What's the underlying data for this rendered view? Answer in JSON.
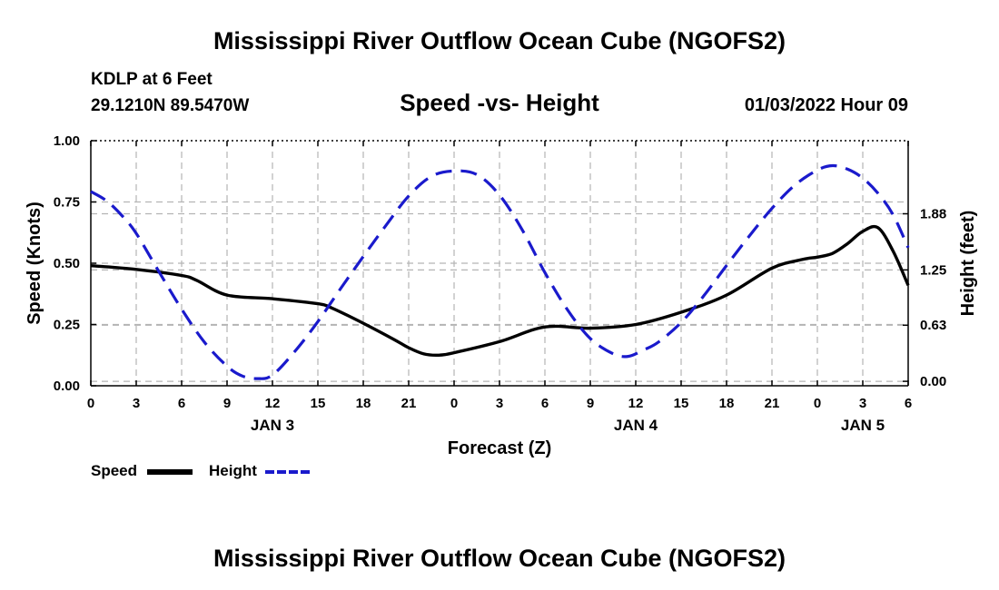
{
  "header": {
    "title": "Mississippi River Outflow Ocean Cube (NGOFS2)",
    "station": "KDLP at 6 Feet",
    "coords": "29.1210N  89.5470W",
    "datetime": "01/03/2022 Hour 09"
  },
  "footer": {
    "title": "Mississippi River Outflow Ocean Cube (NGOFS2)"
  },
  "legend": {
    "speed_label": "Speed",
    "height_label": "Height"
  },
  "colors": {
    "speed": "#000000",
    "height": "#1a1acc",
    "grid": "#b4b4b4"
  },
  "chart_data": {
    "type": "line",
    "title": "Speed -vs- Height",
    "xlabel": "Forecast (Z)",
    "ylabel": "Speed (Knots)",
    "y2label": "Height (feet)",
    "x_unit": "forecast hour",
    "xlim": [
      0,
      54
    ],
    "ylim": [
      0,
      1
    ],
    "y2lim": [
      -0.05,
      2.7
    ],
    "xticks": [
      0,
      3,
      6,
      9,
      12,
      15,
      18,
      21,
      24,
      27,
      30,
      33,
      36,
      39,
      42,
      45,
      48,
      51,
      54
    ],
    "xtick_labels": [
      "0",
      "3",
      "6",
      "9",
      "12",
      "15",
      "18",
      "21",
      "0",
      "3",
      "6",
      "9",
      "12",
      "15",
      "18",
      "21",
      "0",
      "3",
      "6"
    ],
    "day_labels": [
      {
        "x": 12,
        "label": "JAN 3"
      },
      {
        "x": 36,
        "label": "JAN 4"
      },
      {
        "x": 51,
        "label": "JAN 5"
      }
    ],
    "yticks": [
      0,
      0.25,
      0.5,
      0.75,
      1.0
    ],
    "ytick_labels": [
      "0.00",
      "0.25",
      "0.50",
      "0.75",
      "1.00"
    ],
    "y2ticks": [
      0,
      0.63,
      1.25,
      1.88
    ],
    "y2tick_labels": [
      "0.00",
      "0.63",
      "1.25",
      "1.88"
    ],
    "series": [
      {
        "name": "Speed",
        "axis": "left",
        "style": "solid",
        "x": [
          0,
          3,
          6,
          7,
          9,
          12,
          15,
          16,
          18,
          20,
          21,
          22,
          23,
          24,
          27,
          30,
          33,
          36,
          39,
          42,
          45,
          47,
          48,
          49,
          50,
          51,
          52,
          53,
          54
        ],
        "values": [
          0.49,
          0.475,
          0.45,
          0.43,
          0.37,
          0.355,
          0.335,
          0.315,
          0.255,
          0.19,
          0.155,
          0.13,
          0.125,
          0.135,
          0.18,
          0.24,
          0.235,
          0.25,
          0.3,
          0.37,
          0.48,
          0.515,
          0.525,
          0.54,
          0.58,
          0.63,
          0.645,
          0.55,
          0.41
        ]
      },
      {
        "name": "Height",
        "axis": "right",
        "style": "dashed",
        "x": [
          0,
          1,
          2,
          3,
          4.5,
          6,
          7.5,
          9,
          10,
          11,
          12,
          13.5,
          15,
          16.5,
          18,
          19.5,
          21,
          22.5,
          24,
          25.5,
          27,
          28.5,
          30,
          31.5,
          33,
          34.5,
          35.5,
          36.5,
          37.5,
          39,
          40.5,
          42,
          43.5,
          45,
          46.5,
          48,
          49,
          50,
          51,
          52,
          53,
          54
        ],
        "values": [
          2.13,
          2.03,
          1.87,
          1.66,
          1.23,
          0.81,
          0.44,
          0.17,
          0.06,
          0.03,
          0.07,
          0.34,
          0.67,
          1.04,
          1.4,
          1.75,
          2.08,
          2.3,
          2.36,
          2.32,
          2.09,
          1.7,
          1.22,
          0.8,
          0.48,
          0.31,
          0.28,
          0.35,
          0.44,
          0.66,
          0.96,
          1.3,
          1.63,
          1.94,
          2.2,
          2.37,
          2.42,
          2.38,
          2.28,
          2.11,
          1.87,
          1.5
        ]
      }
    ]
  }
}
